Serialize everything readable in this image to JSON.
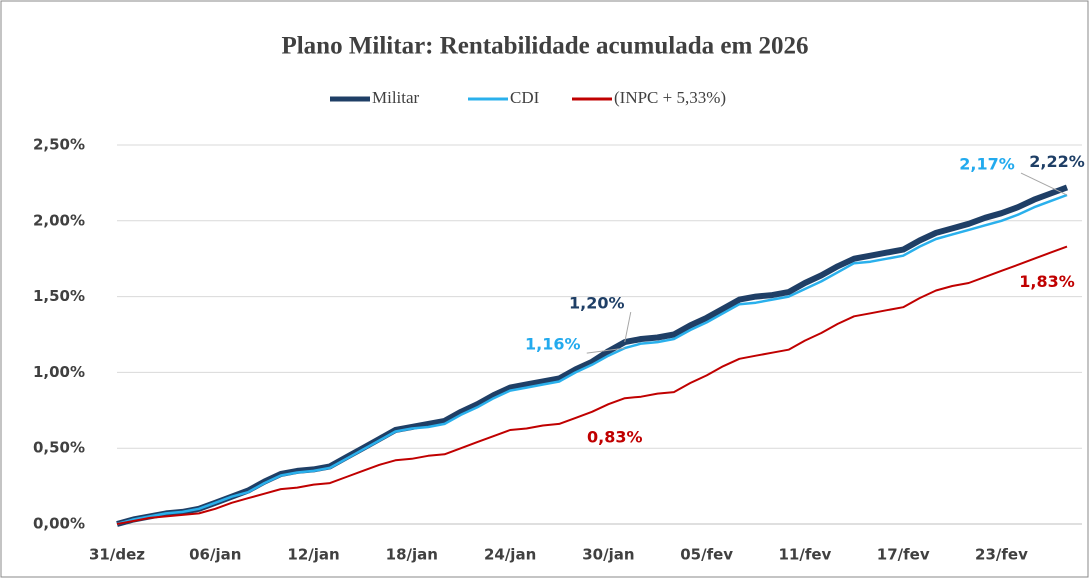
{
  "chart_data": {
    "type": "line",
    "title": "Plano Militar:  Rentabilidade  acumulada  em 2026",
    "categories": [
      "31/dez",
      null,
      null,
      null,
      null,
      null,
      "06/jan",
      null,
      null,
      null,
      null,
      null,
      "12/jan",
      null,
      null,
      null,
      null,
      null,
      "18/jan",
      null,
      null,
      null,
      null,
      null,
      "24/jan",
      null,
      null,
      null,
      null,
      null,
      "30/jan",
      null,
      null,
      null,
      null,
      null,
      "05/fev",
      null,
      null,
      null,
      null,
      null,
      "11/fev",
      null,
      null,
      null,
      null,
      null,
      "17/fev",
      null,
      null,
      null,
      null,
      null,
      "23/fev",
      null,
      null,
      null,
      null
    ],
    "ylim": [
      0,
      2.5
    ],
    "yticks": [
      {
        "value": 0,
        "label": "0,00%"
      },
      {
        "value": 0.5,
        "label": "0,50%"
      },
      {
        "value": 1,
        "label": "1,00%"
      },
      {
        "value": 1.5,
        "label": "1,50%"
      },
      {
        "value": 2,
        "label": "2,00%"
      },
      {
        "value": 2.5,
        "label": "2,50%"
      }
    ],
    "grid": true,
    "series": [
      {
        "name": "Militar",
        "color": "#1f3f66",
        "values": [
          0,
          0.03,
          0.05,
          0.07,
          0.08,
          0.1,
          0.14,
          0.18,
          0.22,
          0.28,
          0.33,
          0.35,
          0.36,
          0.38,
          0.44,
          0.5,
          0.56,
          0.62,
          0.64,
          0.66,
          0.68,
          0.74,
          0.79,
          0.85,
          0.9,
          0.92,
          0.94,
          0.96,
          1.02,
          1.07,
          1.14,
          1.2,
          1.22,
          1.23,
          1.25,
          1.31,
          1.36,
          1.42,
          1.48,
          1.5,
          1.51,
          1.53,
          1.59,
          1.64,
          1.7,
          1.75,
          1.77,
          1.79,
          1.81,
          1.87,
          1.92,
          1.95,
          1.98,
          2.02,
          2.05,
          2.09,
          2.14,
          2.18,
          2.22
        ],
        "value_labels": [
          null,
          null,
          null,
          null,
          null,
          null,
          null,
          null,
          null,
          null,
          null,
          null,
          null,
          null,
          null,
          null,
          null,
          null,
          null,
          null,
          null,
          null,
          null,
          null,
          null,
          null,
          null,
          null,
          null,
          null,
          null,
          "1,20%",
          null,
          null,
          null,
          null,
          null,
          null,
          null,
          null,
          null,
          null,
          null,
          null,
          null,
          null,
          null,
          null,
          null,
          null,
          null,
          null,
          null,
          null,
          null,
          null,
          null,
          null,
          "2,22%"
        ]
      },
      {
        "name": "CDI",
        "color": "#2ab0ec",
        "values": [
          0,
          0.03,
          0.05,
          0.07,
          0.08,
          0.1,
          0.14,
          0.18,
          0.21,
          0.27,
          0.32,
          0.34,
          0.35,
          0.37,
          0.43,
          0.49,
          0.55,
          0.61,
          0.63,
          0.64,
          0.66,
          0.72,
          0.77,
          0.83,
          0.88,
          0.9,
          0.92,
          0.94,
          1.0,
          1.05,
          1.11,
          1.16,
          1.19,
          1.2,
          1.22,
          1.28,
          1.33,
          1.39,
          1.45,
          1.46,
          1.48,
          1.5,
          1.55,
          1.6,
          1.66,
          1.72,
          1.73,
          1.75,
          1.77,
          1.83,
          1.88,
          1.91,
          1.94,
          1.97,
          2.0,
          2.04,
          2.09,
          2.13,
          2.17
        ],
        "value_labels": [
          null,
          null,
          null,
          null,
          null,
          null,
          null,
          null,
          null,
          null,
          null,
          null,
          null,
          null,
          null,
          null,
          null,
          null,
          null,
          null,
          null,
          null,
          null,
          null,
          null,
          null,
          null,
          null,
          null,
          null,
          null,
          "1,16%",
          null,
          null,
          null,
          null,
          null,
          null,
          null,
          null,
          null,
          null,
          null,
          null,
          null,
          null,
          null,
          null,
          null,
          null,
          null,
          null,
          null,
          null,
          null,
          null,
          null,
          null,
          "2,17%"
        ]
      },
      {
        "name": "(INPC + 5,33%)",
        "color": "#c00000",
        "values": [
          0,
          0.02,
          0.04,
          0.05,
          0.06,
          0.07,
          0.1,
          0.14,
          0.17,
          0.2,
          0.23,
          0.24,
          0.26,
          0.27,
          0.31,
          0.35,
          0.39,
          0.42,
          0.43,
          0.45,
          0.46,
          0.5,
          0.54,
          0.58,
          0.62,
          0.63,
          0.65,
          0.66,
          0.7,
          0.74,
          0.79,
          0.83,
          0.84,
          0.86,
          0.87,
          0.93,
          0.98,
          1.04,
          1.09,
          1.11,
          1.13,
          1.15,
          1.21,
          1.26,
          1.32,
          1.37,
          1.39,
          1.41,
          1.43,
          1.49,
          1.54,
          1.57,
          1.59,
          1.63,
          1.67,
          1.71,
          1.75,
          1.79,
          1.83
        ],
        "value_labels": [
          null,
          null,
          null,
          null,
          null,
          null,
          null,
          null,
          null,
          null,
          null,
          null,
          null,
          null,
          null,
          null,
          null,
          null,
          null,
          null,
          null,
          null,
          null,
          null,
          null,
          null,
          null,
          null,
          null,
          null,
          null,
          "0,83%",
          null,
          null,
          null,
          null,
          null,
          null,
          null,
          null,
          null,
          null,
          null,
          null,
          null,
          null,
          null,
          null,
          null,
          null,
          null,
          null,
          null,
          null,
          null,
          null,
          null,
          null,
          "1,83%"
        ]
      }
    ]
  }
}
